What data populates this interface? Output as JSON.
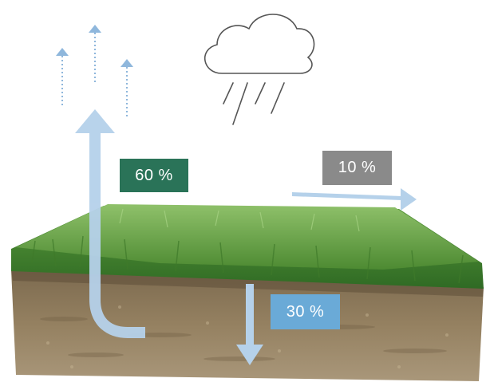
{
  "labels": {
    "evaporation": "60 %",
    "runoff": "10 %",
    "infiltration": "30 %"
  },
  "colors": {
    "evaporation_badge": "#2a7358",
    "runoff_badge": "#8a8a8a",
    "infiltration_badge": "#6aaad7",
    "arrow": "#b5d1ea",
    "dotted_arrow": "#8fb7dc",
    "grass": "#5d9a3e",
    "soil": "#8a7556",
    "cloud_stroke": "#555555"
  },
  "icons": {
    "cloud": "rain-cloud-icon",
    "evaporation": "up-arrow-icon",
    "runoff": "right-arrow-icon",
    "infiltration": "down-arrow-icon"
  }
}
